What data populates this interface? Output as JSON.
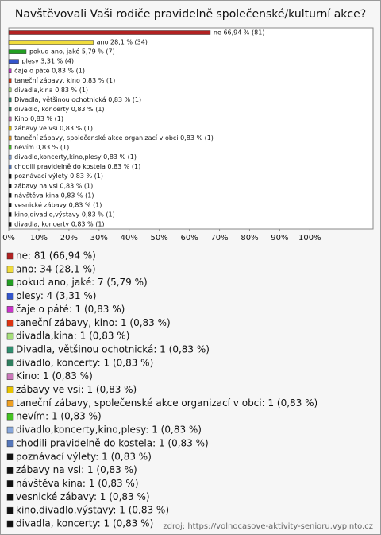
{
  "chart_data": {
    "type": "bar",
    "orientation": "horizontal",
    "title": "Navštěvovali Vaši rodiče pravidelně společenské/kulturní akce?",
    "categories": [
      "ne",
      "ano",
      "pokud ano, jaké",
      "plesy",
      "čaje o páté",
      "taneční zábavy, kino",
      "divadla,kina",
      "Divadla, většinou ochotnická",
      "divadlo, koncerty",
      "Kino",
      "zábavy ve vsi",
      "taneční zábavy, společenské akce organizací v obci",
      "nevím",
      "divadlo,koncerty,kino,plesy",
      "chodili pravidelně do kostela",
      "poznávací výlety",
      "zábavy na vsi",
      "návštěva kina",
      "vesnické zábavy",
      "kino,divadlo,výstavy",
      "divadla, koncerty"
    ],
    "values": [
      66.94,
      28.1,
      5.79,
      3.31,
      0.83,
      0.83,
      0.83,
      0.83,
      0.83,
      0.83,
      0.83,
      0.83,
      0.83,
      0.83,
      0.83,
      0.83,
      0.83,
      0.83,
      0.83,
      0.83,
      0.83
    ],
    "value_labels": [
      "ne 66,94 % (81)",
      "ano 28,1 % (34)",
      "pokud ano, jaké 5,79 % (7)",
      "plesy 3,31 % (4)",
      "čaje o páté 0,83 % (1)",
      "taneční zábavy, kino 0,83 % (1)",
      "divadla,kina 0,83 % (1)",
      "Divadla, většinou ochotnická 0,83 % (1)",
      "divadlo, koncerty 0,83 % (1)",
      "Kino 0,83 % (1)",
      "zábavy ve vsi 0,83 % (1)",
      "taneční zábavy, společenské akce organizací v obci 0,83 % (1)",
      "nevím 0,83 % (1)",
      "divadlo,koncerty,kino,plesy 0,83 % (1)",
      "chodili pravidelně do kostela 0,83 % (1)",
      "poznávací výlety 0,83 % (1)",
      "zábavy na vsi 0,83 % (1)",
      "návštěva kina 0,83 % (1)",
      "vesnické zábavy 0,83 % (1)",
      "kino,divadlo,výstavy 0,83 % (1)",
      "divadla, koncerty 0,83 % (1)"
    ],
    "legend": [
      "ne: 81 (66,94 %)",
      "ano: 34 (28,1 %)",
      "pokud ano, jaké: 7 (5,79 %)",
      "plesy: 4 (3,31 %)",
      "čaje o páté: 1 (0,83 %)",
      "taneční zábavy, kino: 1 (0,83 %)",
      "divadla,kina: 1 (0,83 %)",
      "Divadla, většinou ochotnická: 1 (0,83 %)",
      "divadlo, koncerty: 1 (0,83 %)",
      "Kino: 1 (0,83 %)",
      "zábavy ve vsi: 1 (0,83 %)",
      "taneční zábavy, společenské akce organizací v obci: 1 (0,83 %)",
      "nevím: 1 (0,83 %)",
      "divadlo,koncerty,kino,plesy: 1 (0,83 %)",
      "chodili pravidelně do kostela: 1 (0,83 %)",
      "poznávací výlety: 1 (0,83 %)",
      "zábavy na vsi: 1 (0,83 %)",
      "návštěva kina: 1 (0,83 %)",
      "vesnické zábavy: 1 (0,83 %)",
      "kino,divadlo,výstavy: 1 (0,83 %)",
      "divadla, koncerty: 1 (0,83 %)"
    ],
    "colors": [
      "#b22222",
      "#f0dc3c",
      "#22a022",
      "#3355cc",
      "#cc33cc",
      "#dd3311",
      "#a6e07a",
      "#2f8f6f",
      "#2f7f5f",
      "#cc77bb",
      "#e8c400",
      "#f0a020",
      "#44c422",
      "#88a8dd",
      "#5577bb",
      "#111111",
      "#111111",
      "#111111",
      "#111111",
      "#111111",
      "#111111"
    ],
    "xlim": [
      0,
      121
    ],
    "xticks": [
      {
        "value": 0,
        "label": "0%"
      },
      {
        "value": 10,
        "label": "10%"
      },
      {
        "value": 20,
        "label": "20%"
      },
      {
        "value": 30,
        "label": "30%"
      },
      {
        "value": 40,
        "label": "40%"
      },
      {
        "value": 50,
        "label": "50%"
      },
      {
        "value": 60,
        "label": "60%"
      },
      {
        "value": 70,
        "label": "70%"
      },
      {
        "value": 80,
        "label": "80%"
      },
      {
        "value": 90,
        "label": "90%"
      },
      {
        "value": 100,
        "label": "100%"
      }
    ],
    "source": "zdroj: https://volnocasove-aktivity-senioru.vyplnto.cz"
  }
}
